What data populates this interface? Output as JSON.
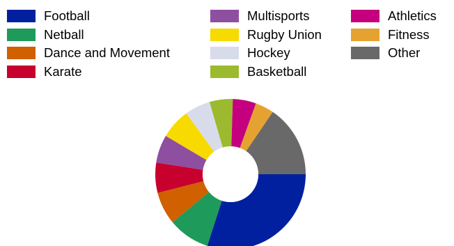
{
  "chart_data": {
    "type": "pie",
    "style": "donut",
    "title": "",
    "legend_placement": "top",
    "categories": [
      "Football",
      "Netball",
      "Dance and Movement",
      "Karate",
      "Multisports",
      "Rugby Union",
      "Hockey",
      "Basketball",
      "Athletics",
      "Fitness",
      "Other"
    ],
    "colors": [
      "#0020A0",
      "#1E9A5A",
      "#D06000",
      "#C8002E",
      "#8E4FA0",
      "#F7DA00",
      "#D8DCEA",
      "#9CBA2E",
      "#C4007F",
      "#E6A231",
      "#696969"
    ],
    "values": [
      30,
      9,
      7,
      6.5,
      6,
      6.5,
      5.5,
      5,
      5,
      4,
      15.5
    ],
    "start_angle_deg": 90,
    "direction": "clockwise"
  }
}
